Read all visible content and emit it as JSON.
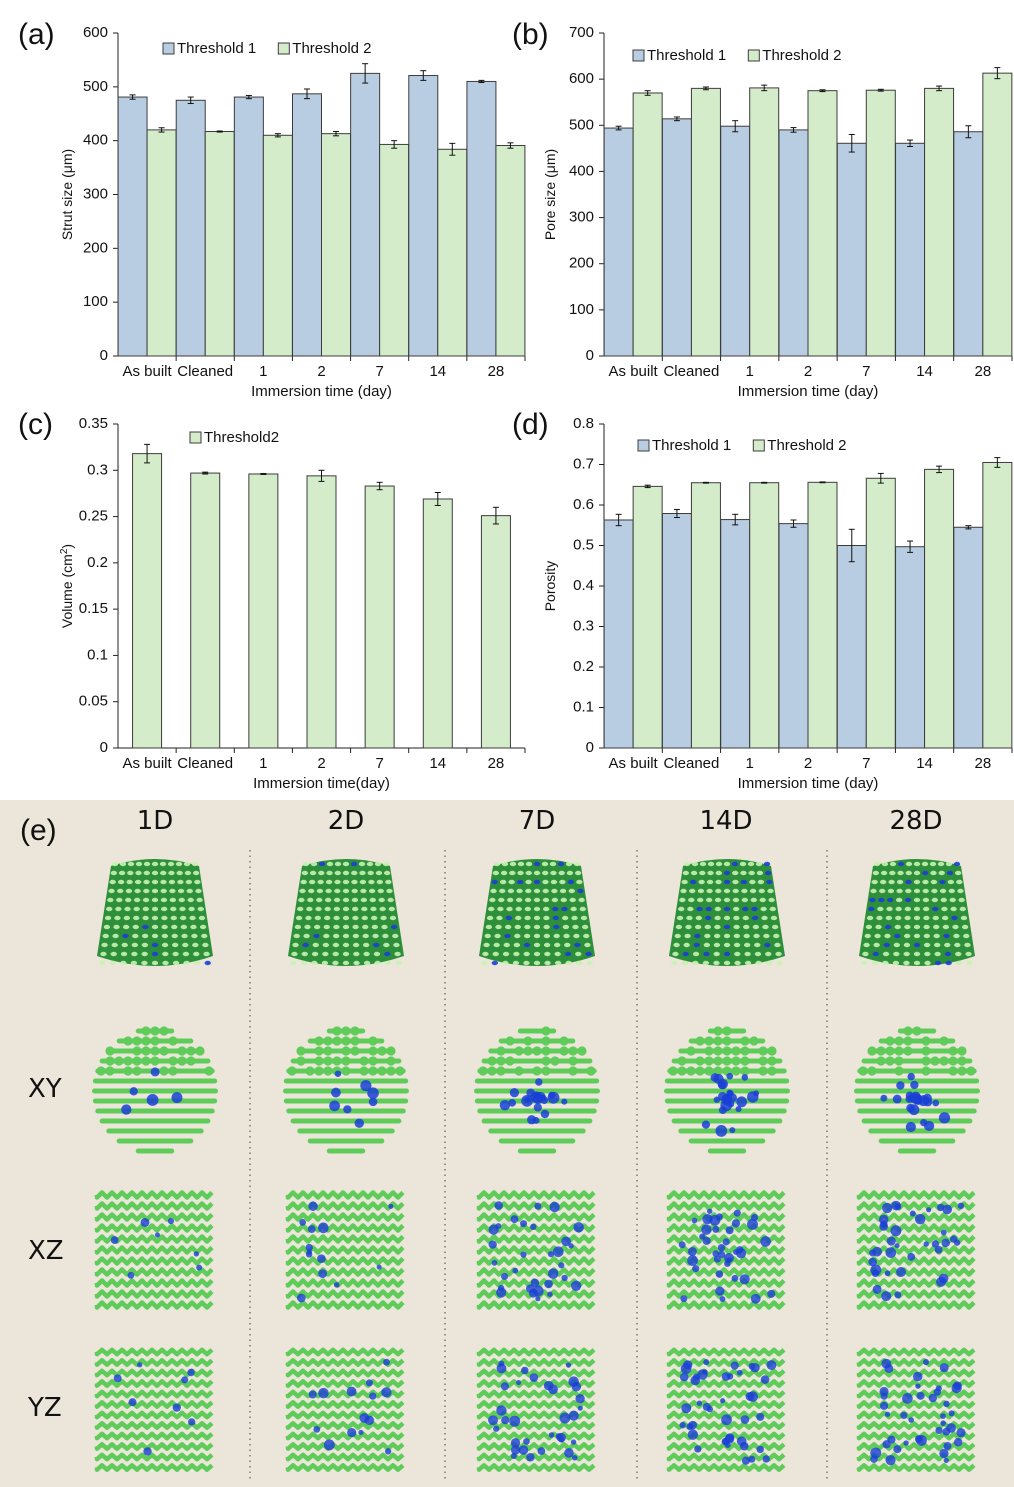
{
  "colors": {
    "threshold1_fill": "#b9cde2",
    "threshold2_fill": "#d4ecca",
    "bar_stroke": "#3c3c3c",
    "panel_e_bg": "#ece6da",
    "scaffold_green": "#5fcc5a",
    "scaffold_blue": "#1a3fd6"
  },
  "chart_data": [
    {
      "id": "a",
      "type": "bar",
      "panel_label": "(a)",
      "categories": [
        "As built",
        "Cleaned",
        "1",
        "2",
        "7",
        "14",
        "28"
      ],
      "xlabel": "Immersion time (day)",
      "ylabel": "Strut size (μm)",
      "ylim": [
        0,
        600
      ],
      "yticks": [
        "0",
        "100",
        "200",
        "300",
        "400",
        "500",
        "600"
      ],
      "legend_position": "top-left",
      "series": [
        {
          "name": "Threshold 1",
          "color": "#b9cde2",
          "values": [
            481,
            475,
            481,
            487,
            525,
            521,
            510
          ],
          "errors": [
            4,
            6,
            3,
            9,
            18,
            9,
            2
          ]
        },
        {
          "name": "Threshold 2",
          "color": "#d4ecca",
          "values": [
            420,
            417,
            410,
            413,
            393,
            384,
            391
          ],
          "errors": [
            4,
            1,
            3,
            4,
            7,
            11,
            5
          ]
        }
      ]
    },
    {
      "id": "b",
      "type": "bar",
      "panel_label": "(b)",
      "categories": [
        "As built",
        "Cleaned",
        "1",
        "2",
        "7",
        "14",
        "28"
      ],
      "xlabel": "Immersion time (day)",
      "ylabel": "Pore size (μm)",
      "ylim": [
        0,
        700
      ],
      "yticks": [
        "0",
        "100",
        "200",
        "300",
        "400",
        "500",
        "600",
        "700"
      ],
      "legend_position": "top-left",
      "series": [
        {
          "name": "Threshold 1",
          "color": "#b9cde2",
          "values": [
            494,
            514,
            498,
            490,
            461,
            461,
            486
          ],
          "errors": [
            4,
            4,
            12,
            5,
            19,
            7,
            13
          ]
        },
        {
          "name": "Threshold 2",
          "color": "#d4ecca",
          "values": [
            570,
            580,
            581,
            575,
            576,
            580,
            613
          ],
          "errors": [
            5,
            3,
            6,
            2,
            2,
            5,
            12
          ]
        }
      ]
    },
    {
      "id": "c",
      "type": "bar",
      "panel_label": "(c)",
      "categories": [
        "As built",
        "Cleaned",
        "1",
        "2",
        "7",
        "14",
        "28"
      ],
      "xlabel": "Immersion time(day)",
      "ylabel": "Volume (cm",
      "ylabel_sup": "2",
      "ylabel_close": ")",
      "ylim": [
        0,
        0.35
      ],
      "yticks": [
        "0",
        "0.05",
        "0.1",
        "0.15",
        "0.2",
        "0.25",
        "0.3",
        "0.35"
      ],
      "legend_position": "top-center",
      "series": [
        {
          "name": "Threshold2",
          "color": "#d4ecca",
          "values": [
            0.318,
            0.297,
            0.296,
            0.294,
            0.283,
            0.269,
            0.251
          ],
          "errors": [
            0.01,
            0.001,
            0.0005,
            0.006,
            0.004,
            0.007,
            0.009
          ]
        }
      ]
    },
    {
      "id": "d",
      "type": "bar",
      "panel_label": "(d)",
      "categories": [
        "As built",
        "Cleaned",
        "1",
        "2",
        "7",
        "14",
        "28"
      ],
      "xlabel": "Immersion time (day)",
      "ylabel": "Porosity",
      "ylim": [
        0,
        0.8
      ],
      "yticks": [
        "0",
        "0.1",
        "0.2",
        "0.3",
        "0.4",
        "0.5",
        "0.6",
        "0.7",
        "0.8"
      ],
      "legend_position": "top-left",
      "series": [
        {
          "name": "Threshold 1",
          "color": "#b9cde2",
          "values": [
            0.563,
            0.579,
            0.564,
            0.554,
            0.5,
            0.497,
            0.545
          ],
          "errors": [
            0.014,
            0.01,
            0.013,
            0.009,
            0.04,
            0.014,
            0.004
          ]
        },
        {
          "name": "Threshold 2",
          "color": "#d4ecca",
          "values": [
            0.646,
            0.655,
            0.655,
            0.656,
            0.666,
            0.688,
            0.705
          ],
          "errors": [
            0.003,
            0.001,
            0.001,
            0.001,
            0.012,
            0.008,
            0.012
          ]
        }
      ]
    }
  ],
  "panel_e": {
    "label": "(e)",
    "columns": [
      "1D",
      "2D",
      "7D",
      "14D",
      "28D"
    ],
    "rows": [
      "XY",
      "XZ",
      "YZ"
    ],
    "blue_fraction": [
      0.08,
      0.14,
      0.34,
      0.42,
      0.4
    ]
  }
}
